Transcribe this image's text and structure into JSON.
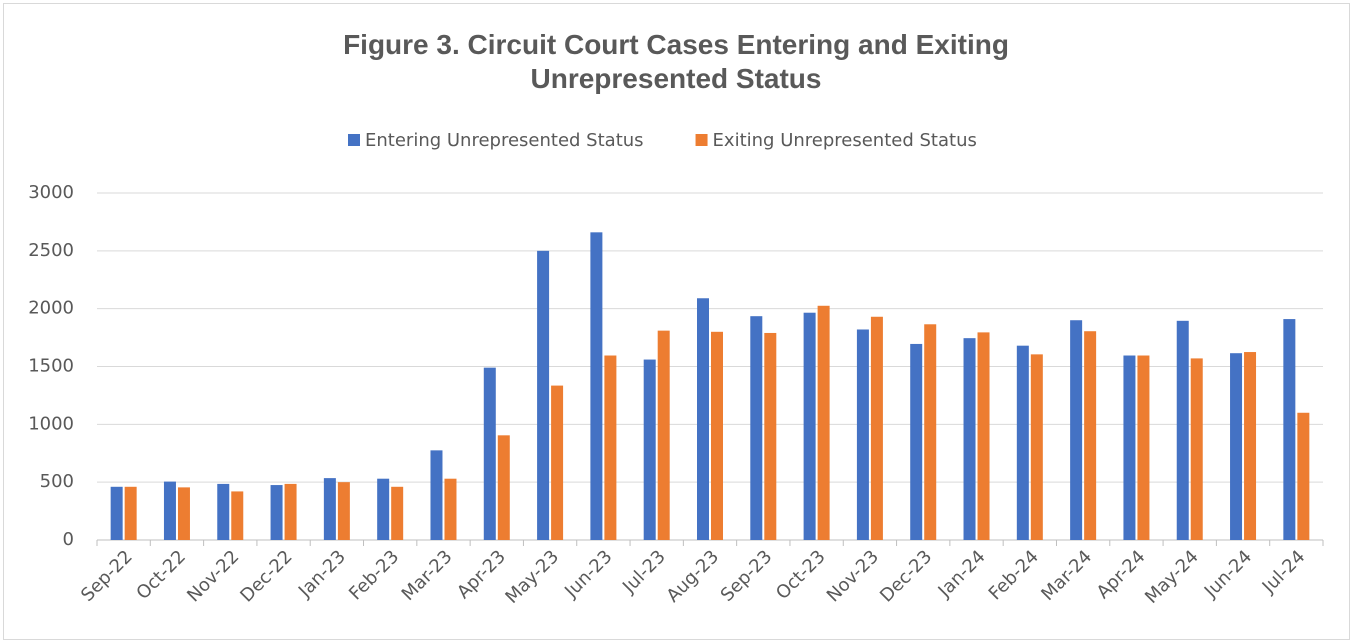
{
  "chart_data": {
    "type": "bar",
    "title": "Figure 3. Circuit Court Cases Entering and Exiting Unrepresented Status",
    "categories": [
      "Sep-22",
      "Oct-22",
      "Nov-22",
      "Dec-22",
      "Jan-23",
      "Feb-23",
      "Mar-23",
      "Apr-23",
      "May-23",
      "Jun-23",
      "Jul-23",
      "Aug-23",
      "Sep-23",
      "Oct-23",
      "Nov-23",
      "Dec-23",
      "Jan-24",
      "Feb-24",
      "Mar-24",
      "Apr-24",
      "May-24",
      "Jun-24",
      "Jul-24"
    ],
    "series": [
      {
        "name": "Entering Unrepresented Status",
        "color": "#4472c4",
        "values": [
          460,
          505,
          485,
          475,
          535,
          530,
          775,
          1490,
          2500,
          2660,
          1560,
          2090,
          1935,
          1965,
          1820,
          1695,
          1745,
          1680,
          1900,
          1595,
          1895,
          1615,
          1910
        ]
      },
      {
        "name": "Exiting Unrepresented Status",
        "color": "#ed7d31",
        "values": [
          460,
          455,
          420,
          485,
          500,
          460,
          530,
          905,
          1335,
          1595,
          1810,
          1800,
          1790,
          2025,
          1930,
          1865,
          1795,
          1605,
          1805,
          1595,
          1570,
          1625,
          1100
        ]
      }
    ],
    "ylim": [
      0,
      3000
    ],
    "yticks": [
      0,
      500,
      1000,
      1500,
      2000,
      2500,
      3000
    ],
    "grid": true,
    "legend": "top"
  }
}
